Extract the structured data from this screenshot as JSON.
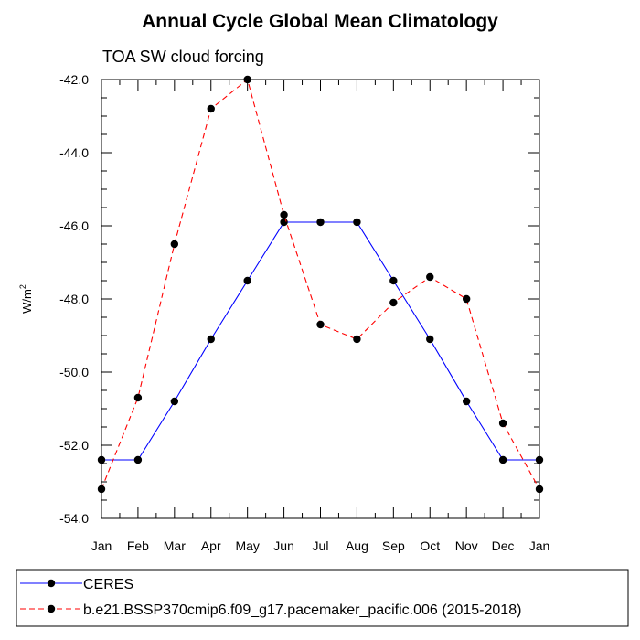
{
  "chart_data": {
    "type": "line",
    "title": "Annual Cycle Global Mean Climatology",
    "subtitle": "TOA SW cloud forcing",
    "ylabel": "W/m",
    "ylabel_superscript": "2",
    "ylim": [
      -54.0,
      -42.0
    ],
    "y_ticks": [
      "-42.0",
      "-44.0",
      "-46.0",
      "-48.0",
      "-50.0",
      "-52.0",
      "-54.0"
    ],
    "categories": [
      "Jan",
      "Feb",
      "Mar",
      "Apr",
      "May",
      "Jun",
      "Jul",
      "Aug",
      "Sep",
      "Oct",
      "Nov",
      "Dec",
      "Jan"
    ],
    "grid": false,
    "legend_position": "bottom",
    "series": [
      {
        "name": "CERES",
        "color": "#0000ff",
        "dashed": false,
        "values": [
          -52.4,
          -52.4,
          -50.8,
          -49.1,
          -47.5,
          -45.9,
          -45.9,
          -45.9,
          -47.5,
          -49.1,
          -50.8,
          -52.4,
          -52.4
        ]
      },
      {
        "name": "b.e21.BSSP370cmip6.f09_g17.pacemaker_pacific.006 (2015-2018)",
        "color": "#ff0000",
        "dashed": true,
        "values": [
          -53.2,
          -50.7,
          -46.5,
          -42.8,
          -42.0,
          -45.7,
          -48.7,
          -49.1,
          -48.1,
          -47.4,
          -48.0,
          -51.4,
          -53.2
        ]
      }
    ]
  }
}
